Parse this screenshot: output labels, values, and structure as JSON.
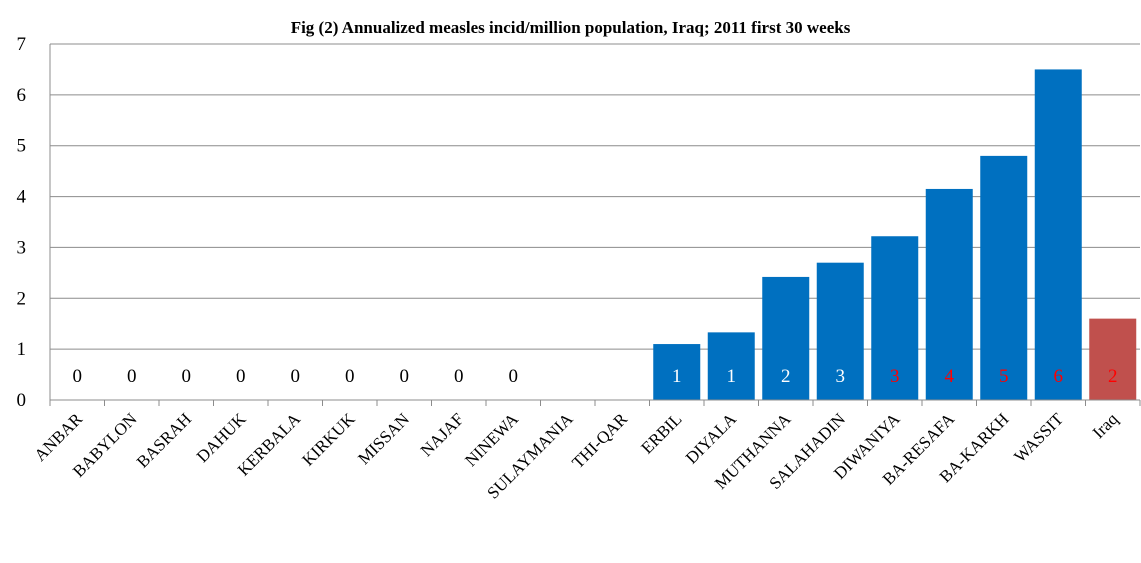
{
  "chart_data": {
    "type": "bar",
    "title": "Fig (2) Annualized measles incid/million population, Iraq;  2011 first 30 weeks",
    "xlabel": "",
    "ylabel": "",
    "ylim": [
      0,
      7
    ],
    "yticks": [
      0,
      1,
      2,
      3,
      4,
      5,
      6,
      7
    ],
    "grid": true,
    "legend": "none",
    "categories": [
      "ANBAR",
      "BABYLON",
      "BASRAH",
      "DAHUK",
      "KERBALA",
      "KIRKUK",
      "MISSAN",
      "NAJAF",
      "NINEWA",
      "SULAYMANIA",
      "THI-QAR",
      "ERBIL",
      "DIYALA",
      "MUTHANNA",
      "SALAHADIN",
      "DIWANIYA",
      "BA-RESAFA",
      "BA-KARKH",
      "WASSIT",
      "Iraq"
    ],
    "values": [
      0,
      0,
      0,
      0,
      0,
      0,
      0,
      0,
      0,
      null,
      null,
      1.1,
      1.33,
      2.42,
      2.7,
      3.22,
      4.15,
      4.8,
      6.5,
      1.6
    ],
    "data_labels": [
      "0",
      "0",
      "0",
      "0",
      "0",
      "0",
      "0",
      "0",
      "0",
      "",
      "",
      "1",
      "1",
      "2",
      "3",
      "3",
      "4",
      "5",
      "6",
      "2"
    ],
    "data_label_colors": [
      "#000000",
      "#000000",
      "#000000",
      "#000000",
      "#000000",
      "#000000",
      "#000000",
      "#000000",
      "#000000",
      "#000000",
      "#000000",
      "#ffffff",
      "#ffffff",
      "#ffffff",
      "#ffffff",
      "#ff0000",
      "#ff0000",
      "#ff0000",
      "#ff0000",
      "#ff0000"
    ],
    "bar_colors": [
      "#0070c0",
      "#0070c0",
      "#0070c0",
      "#0070c0",
      "#0070c0",
      "#0070c0",
      "#0070c0",
      "#0070c0",
      "#0070c0",
      "#0070c0",
      "#0070c0",
      "#0070c0",
      "#0070c0",
      "#0070c0",
      "#0070c0",
      "#0070c0",
      "#0070c0",
      "#0070c0",
      "#0070c0",
      "#c0504d"
    ]
  }
}
